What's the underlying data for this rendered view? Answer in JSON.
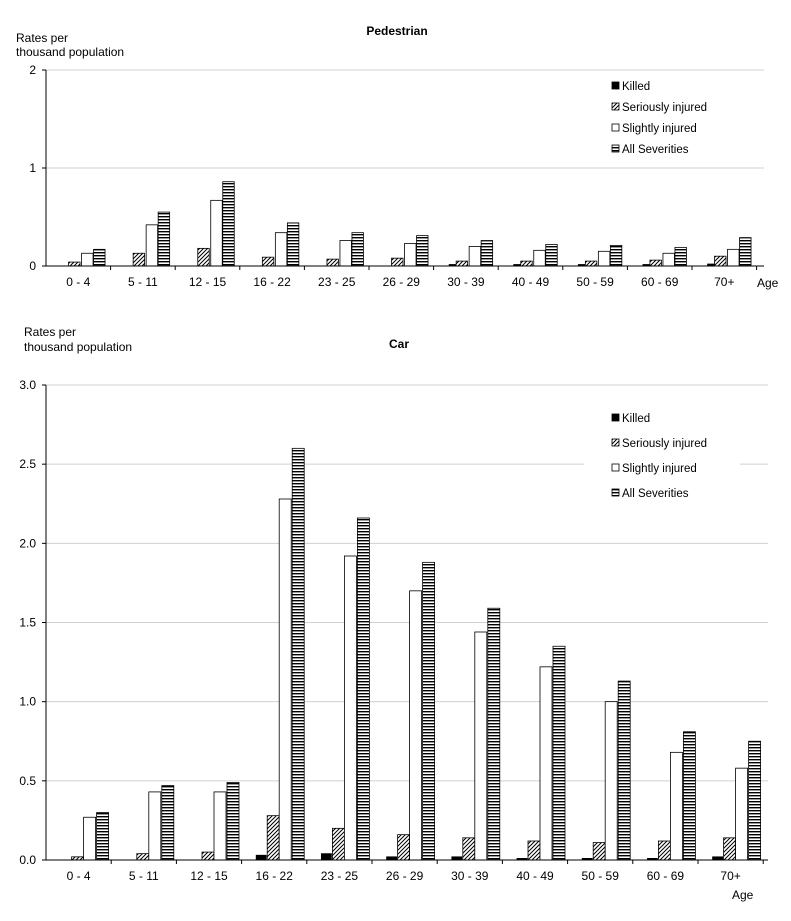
{
  "chart_data": [
    {
      "type": "bar",
      "title": "Pedestrian",
      "ylabel": [
        "Rates per",
        "thousand population"
      ],
      "xlabel": "Age",
      "ylim": [
        0,
        2
      ],
      "yticks": [
        "0",
        "1",
        "2"
      ],
      "categories": [
        "0 - 4",
        "5  - 11",
        "12 - 15",
        "16 - 22",
        "23 - 25",
        "26 - 29",
        "30 - 39",
        "40 - 49",
        "50 - 59",
        "60 - 69",
        "70+"
      ],
      "legend": [
        "Killed",
        "Seriously injured",
        "Slightly injured",
        "All Severities"
      ],
      "legend_position": "top-right",
      "series": [
        {
          "name": "Killed",
          "values": [
            0.0,
            0.0,
            0.0,
            0.0,
            0.0,
            0.0,
            0.005,
            0.005,
            0.005,
            0.01,
            0.02
          ]
        },
        {
          "name": "Seriously injured",
          "values": [
            0.04,
            0.13,
            0.18,
            0.09,
            0.07,
            0.08,
            0.05,
            0.05,
            0.05,
            0.06,
            0.1
          ]
        },
        {
          "name": "Slightly injured",
          "values": [
            0.13,
            0.42,
            0.67,
            0.34,
            0.26,
            0.23,
            0.2,
            0.16,
            0.15,
            0.13,
            0.17
          ]
        },
        {
          "name": "All Severities",
          "values": [
            0.17,
            0.55,
            0.86,
            0.44,
            0.34,
            0.31,
            0.26,
            0.22,
            0.21,
            0.19,
            0.29
          ]
        }
      ]
    },
    {
      "type": "bar",
      "title": "Car",
      "ylabel": [
        "Rates per",
        "thousand population"
      ],
      "xlabel": "Age",
      "ylim": [
        0,
        3
      ],
      "yticks": [
        "0.0",
        "0.5",
        "1.0",
        "1.5",
        "2.0",
        "2.5",
        "3.0"
      ],
      "categories": [
        "0 - 4",
        "5  - 11",
        "12 - 15",
        "16 - 22",
        "23 - 25",
        "26 - 29",
        "30 - 39",
        "40 - 49",
        "50 - 59",
        "60 - 69",
        "70+"
      ],
      "legend": [
        "Killed",
        "Seriously injured",
        "Slightly injured",
        "All Severities"
      ],
      "legend_position": "top-right",
      "series": [
        {
          "name": "Killed",
          "values": [
            0.0,
            0.0,
            0.0,
            0.03,
            0.04,
            0.02,
            0.02,
            0.01,
            0.01,
            0.01,
            0.02
          ]
        },
        {
          "name": "Seriously injured",
          "values": [
            0.02,
            0.04,
            0.05,
            0.28,
            0.2,
            0.16,
            0.14,
            0.12,
            0.11,
            0.12,
            0.14
          ]
        },
        {
          "name": "Slightly injured",
          "values": [
            0.27,
            0.43,
            0.43,
            2.28,
            1.92,
            1.7,
            1.44,
            1.22,
            1.0,
            0.68,
            0.58
          ]
        },
        {
          "name": "All Severities",
          "values": [
            0.3,
            0.47,
            0.49,
            2.6,
            2.16,
            1.88,
            1.59,
            1.35,
            1.13,
            0.81,
            0.75
          ]
        }
      ]
    }
  ]
}
